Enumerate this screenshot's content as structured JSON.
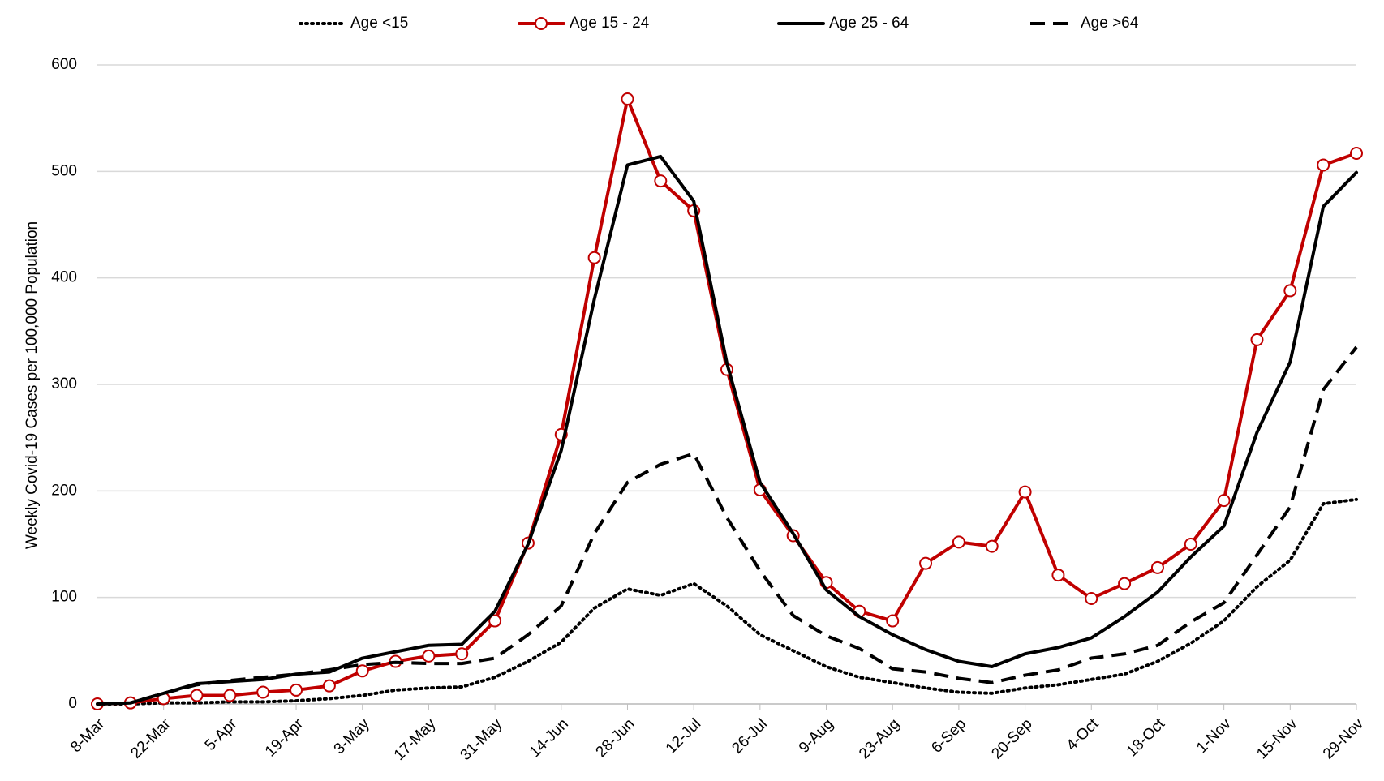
{
  "chart_data": {
    "type": "line",
    "y_label": "Weekly Covid-19 Cases per 100,000 Population",
    "categories": [
      "8-Mar",
      null,
      "22-Mar",
      null,
      "5-Apr",
      null,
      "19-Apr",
      null,
      "3-May",
      null,
      "17-May",
      null,
      "31-May",
      null,
      "14-Jun",
      null,
      "28-Jun",
      null,
      "12-Jul",
      null,
      "26-Jul",
      null,
      "9-Aug",
      null,
      "23-Aug",
      null,
      "6-Sep",
      null,
      "20-Sep",
      null,
      "4-Oct",
      null,
      "18-Oct",
      null,
      "1-Nov",
      null,
      "15-Nov",
      null,
      "29-Nov"
    ],
    "series": [
      {
        "name": "Age <15",
        "color": "#000000",
        "dash": "dotted",
        "values": [
          0,
          0,
          1,
          1,
          2,
          2,
          3,
          5,
          8,
          13,
          15,
          16,
          25,
          40,
          58,
          90,
          108,
          102,
          113,
          92,
          65,
          50,
          35,
          25,
          20,
          15,
          11,
          10,
          15,
          18,
          23,
          28,
          40,
          57,
          78,
          110,
          135,
          188,
          192
        ]
      },
      {
        "name": "Age 15 - 24",
        "color": "#c00000",
        "dash": "solid",
        "marker": "circle",
        "values": [
          0,
          1,
          5,
          8,
          8,
          11,
          13,
          17,
          31,
          40,
          45,
          47,
          78,
          151,
          253,
          419,
          568,
          491,
          463,
          314,
          201,
          158,
          114,
          87,
          78,
          132,
          152,
          148,
          199,
          121,
          99,
          113,
          128,
          150,
          191,
          342,
          388,
          506,
          517
        ]
      },
      {
        "name": "Age 25 - 64",
        "color": "#000000",
        "dash": "solid",
        "values": [
          0,
          1,
          10,
          19,
          21,
          23,
          28,
          30,
          43,
          49,
          55,
          56,
          87,
          150,
          238,
          380,
          506,
          514,
          472,
          320,
          208,
          160,
          107,
          82,
          65,
          51,
          40,
          35,
          47,
          53,
          62,
          82,
          105,
          138,
          167,
          255,
          321,
          467,
          499
        ]
      },
      {
        "name": "Age >64",
        "color": "#000000",
        "dash": "dashed",
        "values": [
          0,
          1,
          10,
          18,
          22,
          25,
          28,
          32,
          37,
          39,
          38,
          38,
          43,
          65,
          92,
          160,
          208,
          225,
          235,
          175,
          125,
          83,
          64,
          52,
          33,
          30,
          24,
          20,
          27,
          32,
          43,
          47,
          55,
          77,
          95,
          140,
          185,
          295,
          335
        ]
      }
    ],
    "ylim": [
      0,
      600
    ],
    "yticks": [
      0,
      100,
      200,
      300,
      400,
      500,
      600
    ],
    "grid": true,
    "legend": "top"
  }
}
